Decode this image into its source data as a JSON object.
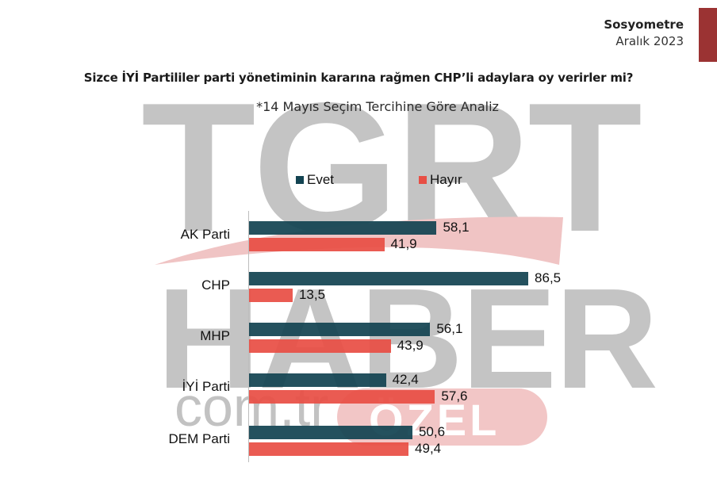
{
  "header": {
    "brand": "Sosyometre",
    "date": "Aralık 2023",
    "accent_color": "#9b3333"
  },
  "watermark": {
    "line1": "TGRT",
    "line2": "HABER",
    "line3": "com.tr",
    "badge": "ÖZEL"
  },
  "chart_data": {
    "type": "bar",
    "orientation": "horizontal",
    "title": "Sizce İYİ Partililer parti yönetiminin kararına rağmen CHP’li adaylara oy verirler mi?",
    "subtitle": "*14 Mayıs Seçim Tercihine Göre Analiz",
    "categories": [
      "AK Parti",
      "CHP",
      "MHP",
      "İYİ Parti",
      "DEM Parti"
    ],
    "series": [
      {
        "name": "Evet",
        "color": "#134452",
        "values": [
          58.1,
          86.5,
          56.1,
          42.4,
          50.6
        ],
        "labels": [
          "58,1",
          "86,5",
          "56,1",
          "42,4",
          "50,6"
        ]
      },
      {
        "name": "Hayır",
        "color": "#e84f45",
        "values": [
          41.9,
          13.5,
          43.9,
          57.6,
          49.4
        ],
        "labels": [
          "41,9",
          "13,5",
          "43,9",
          "57,6",
          "49,4"
        ]
      }
    ],
    "xlabel": "",
    "ylabel": "",
    "xlim": [
      0,
      100
    ],
    "grid": false,
    "legend_position": "top",
    "data_labels": true
  }
}
